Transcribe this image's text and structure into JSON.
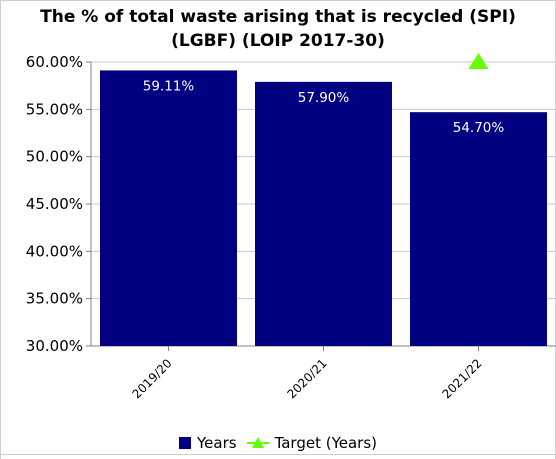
{
  "chart_data": {
    "type": "bar",
    "title_line1": "The % of total waste arising that is recycled (SPI)",
    "title_line2": "(LGBF) (LOIP 2017-30)",
    "categories": [
      "2019/20",
      "2020/21",
      "2021/22"
    ],
    "series": [
      {
        "name": "Years",
        "type": "bar",
        "color": "#000080",
        "values": [
          59.11,
          57.9,
          54.7
        ],
        "labels": [
          "59.11%",
          "57.90%",
          "54.70%"
        ]
      },
      {
        "name": "Target (Years)",
        "type": "marker",
        "marker": "triangle",
        "color": "#66ff00",
        "values": [
          null,
          null,
          60.0
        ]
      }
    ],
    "ylim": [
      30,
      60
    ],
    "yticks": [
      "30.00%",
      "35.00%",
      "40.00%",
      "45.00%",
      "50.00%",
      "55.00%",
      "60.00%"
    ],
    "ytick_values": [
      30,
      35,
      40,
      45,
      50,
      55,
      60
    ],
    "grid": true,
    "legend_position": "bottom"
  }
}
